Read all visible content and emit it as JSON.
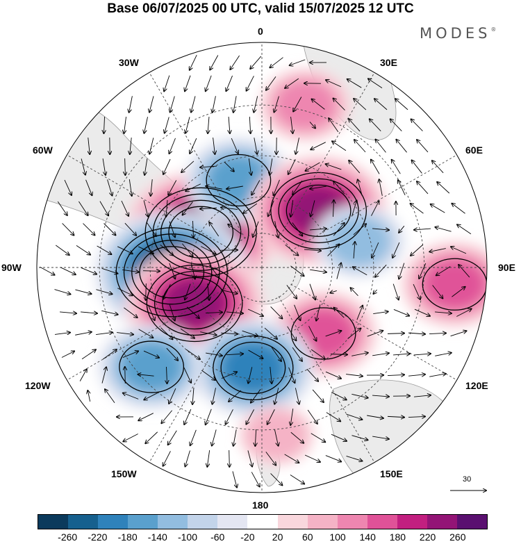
{
  "title": "Base 06/07/2025 00 UTC, valid 15/07/2025 12 UTC",
  "logo": "MODES",
  "logo_mark": "®",
  "longitude_labels": {
    "l0": "0",
    "l30e": "30E",
    "l60e": "60E",
    "l90e": "90E",
    "l120e": "120E",
    "l150e": "150E",
    "l180": "180",
    "l150w": "150W",
    "l120w": "120W",
    "l90w": "90W",
    "l60w": "60W",
    "l30w": "30W"
  },
  "reference_vector_label": "30",
  "colorbar": {
    "colors": [
      "#0b3a5c",
      "#16608e",
      "#2f82bb",
      "#5aa0cd",
      "#92bde0",
      "#c3d4ea",
      "#e4e6f2",
      "#ffffff",
      "#f9d7dd",
      "#f5b3c6",
      "#ee86b0",
      "#e05298",
      "#c21f80",
      "#931476",
      "#5a1070"
    ],
    "labels": [
      "-260",
      "-220",
      "-180",
      "-140",
      "-100",
      "-60",
      "-20",
      "20",
      "60",
      "100",
      "140",
      "180",
      "220",
      "260"
    ]
  },
  "anomaly_features": [
    {
      "sign": "positive",
      "level": 260,
      "lon_deg": -60,
      "colat_deg": 40
    },
    {
      "sign": "negative",
      "level": -140,
      "lon_deg": -15,
      "colat_deg": 50
    },
    {
      "sign": "positive",
      "level": 220,
      "lon_deg": 45,
      "colat_deg": 45
    },
    {
      "sign": "positive",
      "level": 100,
      "lon_deg": 15,
      "colat_deg": 82
    },
    {
      "sign": "negative",
      "level": -100,
      "lon_deg": 75,
      "colat_deg": 55
    },
    {
      "sign": "negative",
      "level": -260,
      "lon_deg": -93,
      "colat_deg": 50
    },
    {
      "sign": "positive",
      "level": 140,
      "lon_deg": 95,
      "colat_deg": 90
    },
    {
      "sign": "positive",
      "level": 220,
      "lon_deg": -118,
      "colat_deg": 43
    },
    {
      "sign": "positive",
      "level": 140,
      "lon_deg": 137,
      "colat_deg": 50
    },
    {
      "sign": "negative",
      "level": -180,
      "lon_deg": -175,
      "colat_deg": 55
    },
    {
      "sign": "negative",
      "level": -140,
      "lon_deg": -132,
      "colat_deg": 75
    },
    {
      "sign": "positive",
      "level": 60,
      "lon_deg": 175,
      "colat_deg": 82
    }
  ]
}
